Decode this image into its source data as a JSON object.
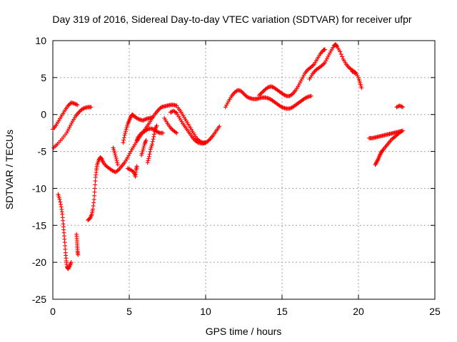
{
  "chart_data": {
    "type": "scatter",
    "title": "Day 319 of 2016, Sidereal Day-to-day VTEC variation (SDTVAR) for receiver ufpr",
    "xlabel": "GPS time / hours",
    "ylabel": "SDTVAR / TECUs",
    "xlim": [
      0,
      25
    ],
    "ylim": [
      -25,
      10
    ],
    "xticks": [
      "0",
      "5",
      "10",
      "15",
      "20",
      "25"
    ],
    "yticks": [
      "10",
      "5",
      "0",
      "-5",
      "-10",
      "-15",
      "-20",
      "-25"
    ],
    "grid": true,
    "marker": "plus",
    "color": "#ff0000",
    "series": [
      {
        "points": [
          [
            0.0,
            -2.0
          ],
          [
            0.2,
            -1.5
          ],
          [
            0.4,
            -0.8
          ],
          [
            0.6,
            -0.1
          ],
          [
            0.8,
            0.6
          ],
          [
            1.0,
            1.2
          ],
          [
            1.2,
            1.6
          ],
          [
            1.4,
            1.5
          ],
          [
            1.6,
            1.3
          ],
          [
            0.05,
            -4.5
          ],
          [
            0.3,
            -4.0
          ],
          [
            0.6,
            -3.3
          ],
          [
            0.9,
            -2.5
          ],
          [
            1.1,
            -1.7
          ],
          [
            1.3,
            -0.9
          ],
          [
            1.5,
            -0.2
          ],
          [
            1.7,
            0.3
          ],
          [
            1.9,
            0.7
          ],
          [
            2.1,
            0.9
          ],
          [
            2.3,
            1.0
          ],
          [
            2.5,
            1.0
          ],
          [
            0.35,
            -10.8
          ],
          [
            0.45,
            -11.5
          ],
          [
            0.55,
            -12.5
          ],
          [
            0.62,
            -13.5
          ],
          [
            0.68,
            -14.8
          ],
          [
            0.73,
            -16.0
          ],
          [
            0.78,
            -17.3
          ],
          [
            0.83,
            -18.7
          ],
          [
            0.88,
            -19.8
          ],
          [
            0.93,
            -20.6
          ],
          [
            1.0,
            -20.9
          ],
          [
            1.1,
            -20.5
          ],
          [
            1.2,
            -20.0
          ],
          [
            1.55,
            -16.2
          ],
          [
            1.58,
            -17.0
          ],
          [
            1.6,
            -17.8
          ],
          [
            1.62,
            -18.5
          ],
          [
            1.65,
            -19.0
          ],
          [
            2.3,
            -14.3
          ],
          [
            2.45,
            -14.0
          ],
          [
            2.55,
            -13.5
          ],
          [
            2.62,
            -12.8
          ],
          [
            2.7,
            -11.5
          ],
          [
            2.75,
            -10.0
          ],
          [
            2.8,
            -8.5
          ],
          [
            2.85,
            -7.5
          ],
          [
            2.9,
            -6.8
          ],
          [
            3.0,
            -6.2
          ],
          [
            3.1,
            -5.8
          ],
          [
            3.2,
            -6.0
          ],
          [
            3.3,
            -6.5
          ],
          [
            3.5,
            -7.0
          ],
          [
            3.7,
            -7.3
          ],
          [
            3.9,
            -7.6
          ],
          [
            4.1,
            -7.8
          ],
          [
            4.3,
            -7.5
          ],
          [
            4.5,
            -7.0
          ],
          [
            4.7,
            -6.5
          ],
          [
            4.9,
            -5.8
          ],
          [
            5.1,
            -5.0
          ],
          [
            5.3,
            -4.3
          ],
          [
            5.5,
            -3.6
          ],
          [
            5.7,
            -3.0
          ],
          [
            5.9,
            -2.4
          ],
          [
            6.1,
            -1.8
          ],
          [
            6.3,
            -1.2
          ],
          [
            6.5,
            -0.5
          ],
          [
            6.7,
            0.1
          ],
          [
            6.9,
            0.6
          ],
          [
            7.1,
            1.0
          ],
          [
            7.3,
            1.1
          ],
          [
            7.5,
            1.2
          ],
          [
            7.7,
            1.3
          ],
          [
            7.9,
            1.3
          ],
          [
            8.1,
            1.2
          ],
          [
            3.95,
            -4.5
          ],
          [
            4.05,
            -5.2
          ],
          [
            4.15,
            -6.0
          ],
          [
            4.25,
            -6.8
          ],
          [
            4.6,
            -3.8
          ],
          [
            4.7,
            -2.8
          ],
          [
            4.8,
            -2.0
          ],
          [
            4.9,
            -1.3
          ],
          [
            5.0,
            -0.8
          ],
          [
            5.1,
            -0.3
          ],
          [
            5.2,
            0.0
          ],
          [
            5.3,
            -0.2
          ],
          [
            5.5,
            -0.5
          ],
          [
            5.7,
            -0.7
          ],
          [
            5.9,
            -0.8
          ],
          [
            6.1,
            -0.6
          ],
          [
            6.3,
            -0.5
          ],
          [
            6.5,
            -0.4
          ],
          [
            4.9,
            -7.3
          ],
          [
            5.1,
            -7.5
          ],
          [
            5.3,
            -7.8
          ],
          [
            5.4,
            -8.4
          ],
          [
            5.45,
            -7.5
          ],
          [
            5.5,
            -7.0
          ],
          [
            5.5,
            -3.5
          ],
          [
            5.6,
            -3.0
          ],
          [
            5.8,
            -2.5
          ],
          [
            6.0,
            -2.3
          ],
          [
            6.2,
            -2.0
          ],
          [
            6.4,
            -1.9
          ],
          [
            6.6,
            -2.0
          ],
          [
            6.8,
            -2.3
          ],
          [
            7.0,
            -2.5
          ],
          [
            7.2,
            -2.5
          ],
          [
            5.8,
            -5.5
          ],
          [
            5.9,
            -4.8
          ],
          [
            6.0,
            -4.0
          ],
          [
            6.1,
            -3.5
          ],
          [
            6.2,
            -6.5
          ],
          [
            6.3,
            -5.7
          ],
          [
            6.4,
            -4.7
          ],
          [
            6.5,
            -4.0
          ],
          [
            6.6,
            -3.0
          ],
          [
            6.7,
            -2.0
          ],
          [
            6.8,
            -1.5
          ],
          [
            7.7,
            0.3
          ],
          [
            7.9,
            0.5
          ],
          [
            8.1,
            0.2
          ],
          [
            8.3,
            -0.5
          ],
          [
            8.5,
            -1.2
          ],
          [
            8.7,
            -1.8
          ],
          [
            8.9,
            -2.4
          ],
          [
            9.1,
            -3.0
          ],
          [
            9.3,
            -3.5
          ],
          [
            9.5,
            -3.8
          ],
          [
            9.7,
            -3.9
          ],
          [
            9.9,
            -3.9
          ],
          [
            10.1,
            -3.7
          ],
          [
            10.3,
            -3.3
          ],
          [
            10.5,
            -2.8
          ],
          [
            10.7,
            -2.2
          ],
          [
            10.9,
            -1.6
          ],
          [
            8.2,
            0.9
          ],
          [
            8.4,
            0.3
          ],
          [
            8.6,
            -0.4
          ],
          [
            8.8,
            -1.1
          ],
          [
            9.0,
            -1.8
          ],
          [
            9.2,
            -2.5
          ],
          [
            9.4,
            -3.2
          ],
          [
            9.6,
            -3.6
          ],
          [
            9.8,
            -3.8
          ],
          [
            10.0,
            -3.8
          ],
          [
            7.3,
            -0.5
          ],
          [
            7.5,
            -1.2
          ],
          [
            7.7,
            -1.8
          ],
          [
            7.9,
            -2.2
          ],
          [
            8.1,
            -2.5
          ],
          [
            11.3,
            1.0
          ],
          [
            11.5,
            1.8
          ],
          [
            11.7,
            2.5
          ],
          [
            11.9,
            3.0
          ],
          [
            12.1,
            3.3
          ],
          [
            12.3,
            3.2
          ],
          [
            12.5,
            2.8
          ],
          [
            12.7,
            2.4
          ],
          [
            12.9,
            2.2
          ],
          [
            13.1,
            2.1
          ],
          [
            13.3,
            2.1
          ],
          [
            13.5,
            2.2
          ],
          [
            13.7,
            2.3
          ],
          [
            13.9,
            2.3
          ],
          [
            14.1,
            2.2
          ],
          [
            14.3,
            2.0
          ],
          [
            14.5,
            1.7
          ],
          [
            14.7,
            1.4
          ],
          [
            14.9,
            1.1
          ],
          [
            15.1,
            0.9
          ],
          [
            15.3,
            0.8
          ],
          [
            15.5,
            0.8
          ],
          [
            15.7,
            1.0
          ],
          [
            15.9,
            1.3
          ],
          [
            16.1,
            1.6
          ],
          [
            16.3,
            1.9
          ],
          [
            16.5,
            2.2
          ],
          [
            16.7,
            2.4
          ],
          [
            16.9,
            2.5
          ],
          [
            13.5,
            2.6
          ],
          [
            13.7,
            3.0
          ],
          [
            13.9,
            3.4
          ],
          [
            14.1,
            3.7
          ],
          [
            14.3,
            3.8
          ],
          [
            14.5,
            3.6
          ],
          [
            14.7,
            3.3
          ],
          [
            14.9,
            3.0
          ],
          [
            15.1,
            2.7
          ],
          [
            15.3,
            2.5
          ],
          [
            15.5,
            2.5
          ],
          [
            15.7,
            2.8
          ],
          [
            15.9,
            3.3
          ],
          [
            16.1,
            4.0
          ],
          [
            16.3,
            4.8
          ],
          [
            16.5,
            5.6
          ],
          [
            16.7,
            6.1
          ],
          [
            16.9,
            6.4
          ],
          [
            17.1,
            6.8
          ],
          [
            17.3,
            7.5
          ],
          [
            17.5,
            8.2
          ],
          [
            17.7,
            8.7
          ],
          [
            17.8,
            8.8
          ],
          [
            16.8,
            4.8
          ],
          [
            17.0,
            5.5
          ],
          [
            17.2,
            6.0
          ],
          [
            17.4,
            6.3
          ],
          [
            17.6,
            6.6
          ],
          [
            17.8,
            7.0
          ],
          [
            18.0,
            7.8
          ],
          [
            18.2,
            8.6
          ],
          [
            18.4,
            9.3
          ],
          [
            18.5,
            9.5
          ],
          [
            18.6,
            9.2
          ],
          [
            18.8,
            8.5
          ],
          [
            19.0,
            7.5
          ],
          [
            19.2,
            6.8
          ],
          [
            19.4,
            6.3
          ],
          [
            19.6,
            6.0
          ],
          [
            19.8,
            5.7
          ],
          [
            20.0,
            5.0
          ],
          [
            20.1,
            4.3
          ],
          [
            20.2,
            3.6
          ],
          [
            19.6,
            5.8
          ],
          [
            19.8,
            5.6
          ],
          [
            20.7,
            -3.2
          ],
          [
            20.9,
            -3.2
          ],
          [
            21.1,
            -3.1
          ],
          [
            21.3,
            -3.0
          ],
          [
            21.5,
            -2.9
          ],
          [
            21.7,
            -2.8
          ],
          [
            21.9,
            -2.7
          ],
          [
            22.1,
            -2.6
          ],
          [
            22.3,
            -2.5
          ],
          [
            22.5,
            -2.4
          ],
          [
            22.7,
            -2.3
          ],
          [
            22.9,
            -2.2
          ],
          [
            21.1,
            -6.8
          ],
          [
            21.2,
            -6.4
          ],
          [
            21.3,
            -6.0
          ],
          [
            21.4,
            -5.5
          ],
          [
            21.5,
            -5.1
          ],
          [
            21.6,
            -4.8
          ],
          [
            21.8,
            -4.3
          ],
          [
            22.0,
            -3.8
          ],
          [
            22.2,
            -3.3
          ],
          [
            22.4,
            -3.0
          ],
          [
            22.6,
            -2.6
          ],
          [
            22.8,
            -2.3
          ],
          [
            22.5,
            1.0
          ],
          [
            22.7,
            1.2
          ],
          [
            22.9,
            1.0
          ]
        ]
      }
    ]
  }
}
